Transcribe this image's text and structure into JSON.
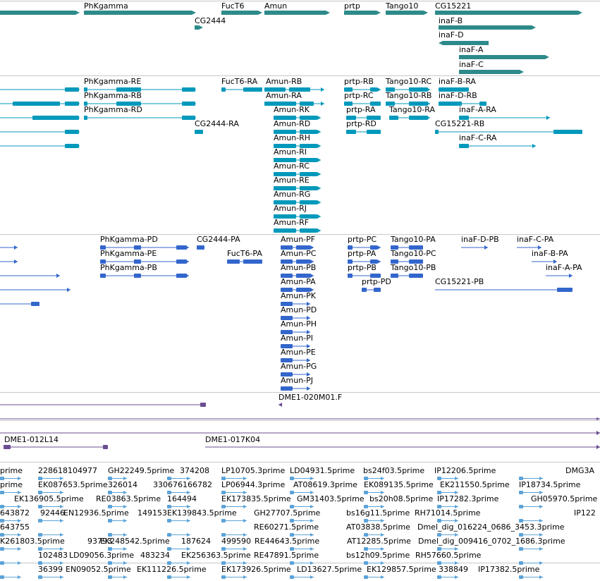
{
  "colors": {
    "gene": "#2e8a8a",
    "transcript": "#0099bb",
    "protein": "#3366cc",
    "clone": "#6a4c93",
    "est": "#5ba3d9"
  },
  "gene_track": {
    "genes": [
      {
        "label": "PhKgamma"
      },
      {
        "label": "FucT6"
      },
      {
        "label": "Amun"
      },
      {
        "label": "prtp"
      },
      {
        "label": "Tango10"
      },
      {
        "label": "CG15221"
      },
      {
        "label": "CG2444"
      },
      {
        "label": "inaF-B"
      },
      {
        "label": "inaF-D"
      },
      {
        "label": "inaF-A"
      },
      {
        "label": "inaF-C"
      }
    ]
  },
  "transcript_track": {
    "transcripts": [
      {
        "label": "PhKgamma-RE"
      },
      {
        "label": "PhKgamma-RB"
      },
      {
        "label": "PhKgamma-RD"
      },
      {
        "label": "FucT6-RA"
      },
      {
        "label": "CG2444-RA"
      },
      {
        "label": "Amun-RB"
      },
      {
        "label": "Amun-RA"
      },
      {
        "label": "Amun-RK"
      },
      {
        "label": "Amun-RD"
      },
      {
        "label": "Amun-RH"
      },
      {
        "label": "Amun-RI"
      },
      {
        "label": "Amun-RC"
      },
      {
        "label": "Amun-RE"
      },
      {
        "label": "Amun-RG"
      },
      {
        "label": "Amun-RJ"
      },
      {
        "label": "Amun-RF"
      },
      {
        "label": "prtp-RB"
      },
      {
        "label": "prtp-RC"
      },
      {
        "label": "prtp-RA"
      },
      {
        "label": "prtp-RD"
      },
      {
        "label": "Tango10-RC"
      },
      {
        "label": "Tango10-RB"
      },
      {
        "label": "Tango10-RA"
      },
      {
        "label": "inaF-B-RA"
      },
      {
        "label": "inaF-D-RB"
      },
      {
        "label": "inaF-A-RA"
      },
      {
        "label": "CG15221-RB"
      },
      {
        "label": "inaF-C-RA"
      }
    ]
  },
  "protein_track": {
    "proteins": [
      {
        "label": "PhKgamma-PD"
      },
      {
        "label": "PhKgamma-PE"
      },
      {
        "label": "PhKgamma-PB"
      },
      {
        "label": "CG2444-PA"
      },
      {
        "label": "FucT6-PA"
      },
      {
        "label": "Amun-PF"
      },
      {
        "label": "Amun-PC"
      },
      {
        "label": "Amun-PB"
      },
      {
        "label": "Amun-PA"
      },
      {
        "label": "Amun-PK"
      },
      {
        "label": "Amun-PD"
      },
      {
        "label": "Amun-PH"
      },
      {
        "label": "Amun-PI"
      },
      {
        "label": "Amun-PE"
      },
      {
        "label": "Amun-PG"
      },
      {
        "label": "Amun-PJ"
      },
      {
        "label": "prtp-PC"
      },
      {
        "label": "prtp-PA"
      },
      {
        "label": "prtp-PB"
      },
      {
        "label": "prtp-PD"
      },
      {
        "label": "Tango10-PA"
      },
      {
        "label": "Tango10-PC"
      },
      {
        "label": "Tango10-PB"
      },
      {
        "label": "CG15221-PB"
      },
      {
        "label": "inaF-D-PB"
      },
      {
        "label": "inaF-C-PA"
      },
      {
        "label": "inaF-B-PA"
      },
      {
        "label": "inaF-A-PA"
      }
    ]
  },
  "clone_track": {
    "clones": [
      {
        "label": "DME1-020M01.F"
      },
      {
        "label": "DME1-012L14"
      },
      {
        "label": "DME1-017K04"
      }
    ]
  },
  "est_track": {
    "ests": [
      {
        "label": "prime"
      },
      {
        "label": "228618104977"
      },
      {
        "label": "GH22249.5prime"
      },
      {
        "label": "374208"
      },
      {
        "label": "LP10705.3prime"
      },
      {
        "label": "LD04931.5prime"
      },
      {
        "label": "bs24f03.5prime"
      },
      {
        "label": "IP12206.5prime"
      },
      {
        "label": "DMG3A"
      },
      {
        "label": "prime"
      },
      {
        "label": "EK087653.5prime"
      },
      {
        "label": "326014"
      },
      {
        "label": "330676166782"
      },
      {
        "label": "LP06944.3prime"
      },
      {
        "label": "AT08619.3prime"
      },
      {
        "label": "EK089135.5prime"
      },
      {
        "label": "EK211550.5prime"
      },
      {
        "label": "IP18734.5prime"
      },
      {
        "label": "EK136905.5prime"
      },
      {
        "label": "RE03863.5prime"
      },
      {
        "label": "164494"
      },
      {
        "label": "EK173835.5prime"
      },
      {
        "label": "GM31403.5prime"
      },
      {
        "label": "bs20h08.5prime"
      },
      {
        "label": "IP17282.3prime"
      },
      {
        "label": "GH05970.5prime"
      },
      {
        "label": "643872"
      },
      {
        "label": "92446"
      },
      {
        "label": "EN12936.5prime"
      },
      {
        "label": "149153"
      },
      {
        "label": "EK139843.5prime"
      },
      {
        "label": "GH27707.5prime"
      },
      {
        "label": "bs16g11.5prime"
      },
      {
        "label": "RH71014.5prime"
      },
      {
        "label": "IP122"
      },
      {
        "label": "643755"
      },
      {
        "label": "RE60271.5prime"
      },
      {
        "label": "AT03838.5prime"
      },
      {
        "label": "Dmel_dig_016224_0686_3453.3prime"
      },
      {
        "label": "K261803.5prime"
      },
      {
        "label": "93793"
      },
      {
        "label": "EK248542.5prime"
      },
      {
        "label": "187624"
      },
      {
        "label": "499590"
      },
      {
        "label": "RE44643.5prime"
      },
      {
        "label": "AT12285.5prime"
      },
      {
        "label": "Dmel_dig_009416_0702_1686.3prime"
      },
      {
        "label": "102483"
      },
      {
        "label": "LD09056.3prime"
      },
      {
        "label": "483234"
      },
      {
        "label": "EK256363.5prime"
      },
      {
        "label": "RE47891.5prime"
      },
      {
        "label": "bs12h09.5prime"
      },
      {
        "label": "RH57660.5prime"
      },
      {
        "label": "36399"
      },
      {
        "label": "EN09052.5prime"
      },
      {
        "label": "EK111226.5prime"
      },
      {
        "label": "EK173926.5prime"
      },
      {
        "label": "LD13627.5prime"
      },
      {
        "label": "EK129857.5prime"
      },
      {
        "label": "338849"
      },
      {
        "label": "IP17382.5prime"
      }
    ]
  }
}
